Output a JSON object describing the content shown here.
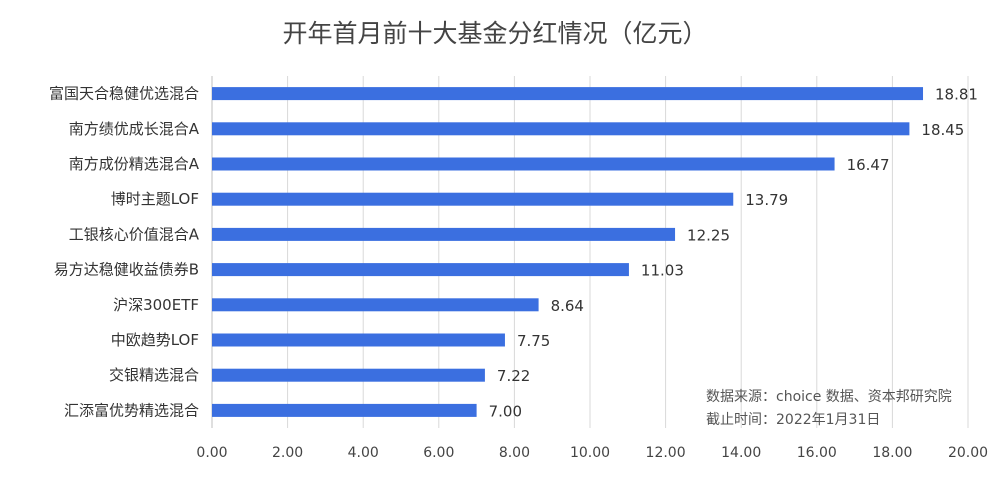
{
  "chart_data": {
    "type": "bar",
    "orientation": "horizontal",
    "title": "开年首月前十大基金分红情况（亿元）",
    "categories": [
      "富国天合稳健优选混合",
      "南方绩优成长混合A",
      "南方成份精选混合A",
      "博时主题LOF",
      "工银核心价值混合A",
      "易方达稳健收益债券B",
      "沪深300ETF",
      "中欧趋势LOF",
      "交银精选混合",
      "汇添富优势精选混合"
    ],
    "values": [
      18.81,
      18.45,
      16.47,
      13.79,
      12.25,
      11.03,
      8.64,
      7.75,
      7.22,
      7.0
    ],
    "value_labels": [
      "18.81",
      "18.45",
      "16.47",
      "13.79",
      "12.25",
      "11.03",
      "8.64",
      "7.75",
      "7.22",
      "7.00"
    ],
    "xlim": [
      0,
      20
    ],
    "xticks": [
      "0.00",
      "2.00",
      "4.00",
      "6.00",
      "8.00",
      "10.00",
      "12.00",
      "14.00",
      "16.00",
      "18.00",
      "20.00"
    ],
    "xlabel": "",
    "ylabel": "",
    "grid": "vertical",
    "bar_color": "#3b6fe0",
    "annotations": [
      "数据来源：choice 数据、资本邦研究院",
      "截止时间：2022年1月31日"
    ]
  }
}
